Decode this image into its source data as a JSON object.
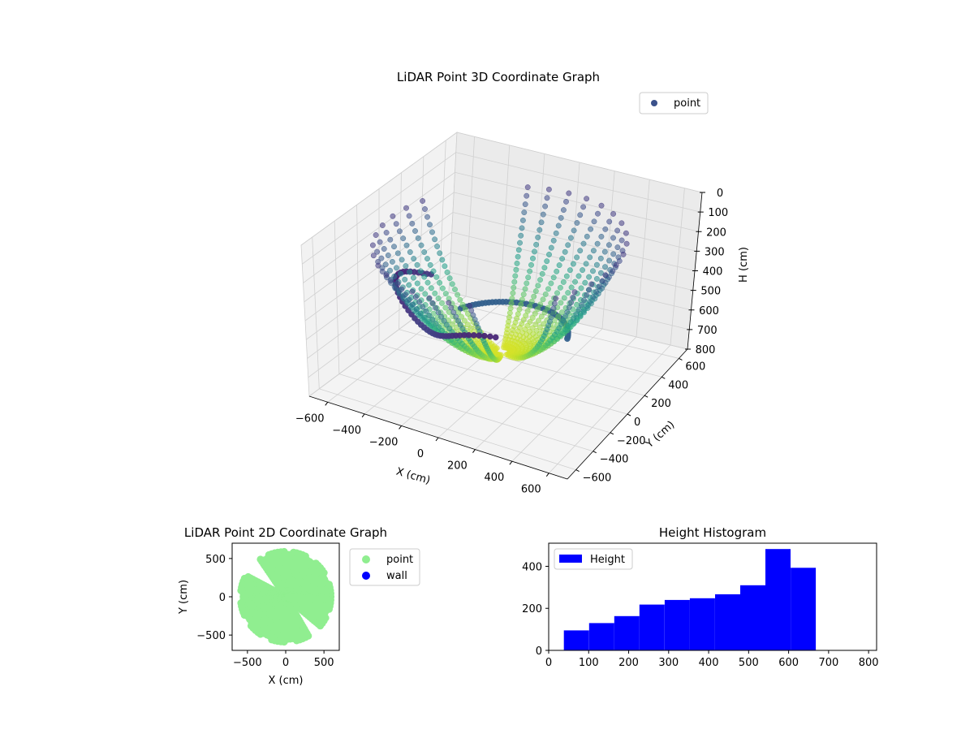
{
  "chart_data": [
    {
      "type": "scatter3d",
      "title": "LiDAR Point 3D Coordinate Graph",
      "xlabel": "X (cm)",
      "ylabel": "Y (cm)",
      "zlabel": "H (cm)",
      "xlim": [
        -700,
        700
      ],
      "ylim": [
        -700,
        700
      ],
      "zlim": [
        0,
        800
      ],
      "z_inverted": true,
      "x_ticks": [
        -600,
        -400,
        -200,
        0,
        200,
        400,
        600
      ],
      "y_ticks": [
        -600,
        -400,
        -200,
        0,
        200,
        400,
        600
      ],
      "z_ticks": [
        0,
        100,
        200,
        300,
        400,
        500,
        600,
        700,
        800
      ],
      "x_tick_labels": [
        "−600",
        "−400",
        "−200",
        "0",
        "200",
        "400",
        "600"
      ],
      "y_tick_labels": [
        "−600",
        "−400",
        "−200",
        "0",
        "200",
        "400",
        "600"
      ],
      "z_tick_labels": [
        "0",
        "100",
        "200",
        "300",
        "400",
        "500",
        "600",
        "700",
        "800"
      ],
      "legend": [
        "point"
      ],
      "colormap": "viridis",
      "description_series": "points lie on a bowl-shaped surface H ~ 660 - 0.0014*r^2 with radius up to 620 cm"
    },
    {
      "type": "scatter",
      "title": "LiDAR Point 2D Coordinate Graph",
      "xlabel": "X (cm)",
      "ylabel": "Y (cm)",
      "xlim": [
        -700,
        700
      ],
      "ylim": [
        -700,
        700
      ],
      "x_ticks": [
        -500,
        0,
        500
      ],
      "y_ticks": [
        -500,
        0,
        500
      ],
      "x_tick_labels": [
        "−500",
        "0",
        "500"
      ],
      "y_tick_labels": [
        "−500",
        "0",
        "500"
      ],
      "series": [
        {
          "name": "point",
          "color": "#90ee90"
        },
        {
          "name": "wall",
          "color": "#0000ff"
        }
      ],
      "legend_placement": "outside-right"
    },
    {
      "type": "histogram",
      "title": "Height Histogram",
      "xlabel": "",
      "ylabel": "",
      "xlim": [
        0,
        820
      ],
      "ylim": [
        0,
        510
      ],
      "x_ticks": [
        0,
        100,
        200,
        300,
        400,
        500,
        600,
        700,
        800
      ],
      "y_ticks": [
        0,
        200,
        400
      ],
      "bin_edges": [
        38,
        101,
        164,
        227,
        290,
        353,
        416,
        479,
        542,
        605,
        668
      ],
      "counts": [
        95,
        130,
        163,
        218,
        240,
        248,
        267,
        310,
        482,
        393
      ],
      "legend": [
        "Height"
      ],
      "color": "#0000ff",
      "legend_placement": "top-left"
    }
  ]
}
